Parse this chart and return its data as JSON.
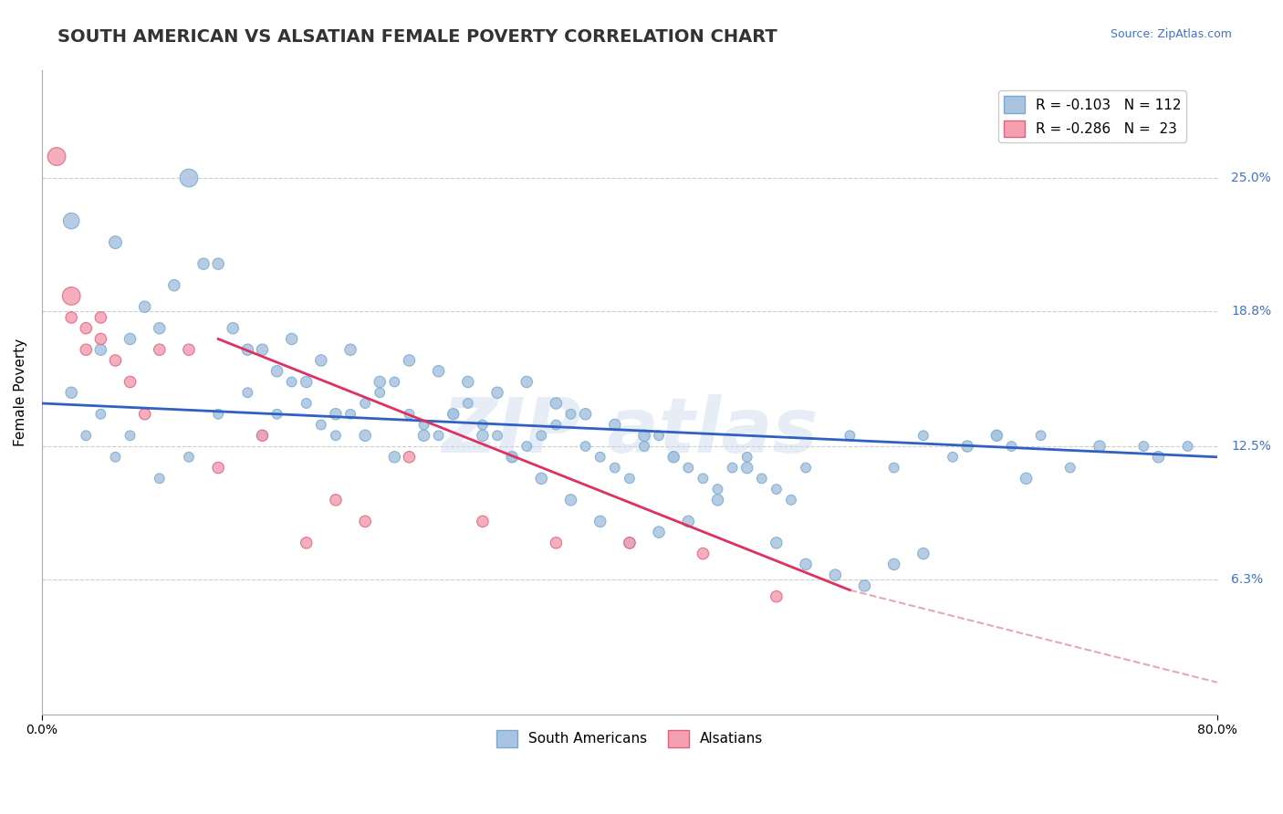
{
  "title": "SOUTH AMERICAN VS ALSATIAN FEMALE POVERTY CORRELATION CHART",
  "source": "Source: ZipAtlas.com",
  "ylabel": "Female Poverty",
  "xlim": [
    0.0,
    0.8
  ],
  "ylim": [
    0.0,
    0.3
  ],
  "yticks": [
    0.0,
    0.063,
    0.125,
    0.188,
    0.25
  ],
  "ytick_labels": [
    "",
    "6.3%",
    "12.5%",
    "18.8%",
    "25.0%"
  ],
  "xticks": [
    0.0,
    0.8
  ],
  "xtick_labels": [
    "0.0%",
    "80.0%"
  ],
  "south_americans": {
    "color": "#a8c4e0",
    "edge_color": "#7aaacf",
    "x": [
      0.02,
      0.03,
      0.04,
      0.05,
      0.06,
      0.08,
      0.1,
      0.12,
      0.14,
      0.15,
      0.16,
      0.17,
      0.18,
      0.19,
      0.2,
      0.21,
      0.22,
      0.23,
      0.24,
      0.25,
      0.26,
      0.27,
      0.28,
      0.29,
      0.3,
      0.31,
      0.32,
      0.33,
      0.34,
      0.35,
      0.36,
      0.37,
      0.38,
      0.39,
      0.4,
      0.41,
      0.42,
      0.43,
      0.44,
      0.45,
      0.46,
      0.47,
      0.48,
      0.49,
      0.5,
      0.51,
      0.52,
      0.55,
      0.58,
      0.6,
      0.62,
      0.65,
      0.66,
      0.68,
      0.7,
      0.75,
      0.78,
      0.05,
      0.07,
      0.09,
      0.11,
      0.13,
      0.15,
      0.17,
      0.19,
      0.21,
      0.23,
      0.25,
      0.27,
      0.29,
      0.31,
      0.33,
      0.35,
      0.37,
      0.39,
      0.41,
      0.43,
      0.02,
      0.04,
      0.06,
      0.08,
      0.1,
      0.12,
      0.14,
      0.16,
      0.18,
      0.2,
      0.22,
      0.24,
      0.26,
      0.28,
      0.3,
      0.32,
      0.34,
      0.36,
      0.38,
      0.4,
      0.42,
      0.44,
      0.46,
      0.48,
      0.5,
      0.52,
      0.54,
      0.56,
      0.58,
      0.6,
      0.63,
      0.65,
      0.67,
      0.72,
      0.76
    ],
    "y": [
      0.15,
      0.13,
      0.14,
      0.12,
      0.13,
      0.11,
      0.12,
      0.14,
      0.15,
      0.13,
      0.14,
      0.155,
      0.145,
      0.135,
      0.13,
      0.14,
      0.145,
      0.15,
      0.155,
      0.14,
      0.135,
      0.13,
      0.14,
      0.145,
      0.135,
      0.13,
      0.12,
      0.125,
      0.13,
      0.135,
      0.14,
      0.125,
      0.12,
      0.115,
      0.11,
      0.125,
      0.13,
      0.12,
      0.115,
      0.11,
      0.105,
      0.115,
      0.12,
      0.11,
      0.105,
      0.1,
      0.115,
      0.13,
      0.115,
      0.13,
      0.12,
      0.13,
      0.125,
      0.13,
      0.115,
      0.125,
      0.125,
      0.22,
      0.19,
      0.2,
      0.21,
      0.18,
      0.17,
      0.175,
      0.165,
      0.17,
      0.155,
      0.165,
      0.16,
      0.155,
      0.15,
      0.155,
      0.145,
      0.14,
      0.135,
      0.13,
      0.12,
      0.23,
      0.17,
      0.175,
      0.18,
      0.25,
      0.21,
      0.17,
      0.16,
      0.155,
      0.14,
      0.13,
      0.12,
      0.13,
      0.14,
      0.13,
      0.12,
      0.11,
      0.1,
      0.09,
      0.08,
      0.085,
      0.09,
      0.1,
      0.115,
      0.08,
      0.07,
      0.065,
      0.06,
      0.07,
      0.075,
      0.125,
      0.13,
      0.11,
      0.125,
      0.12
    ],
    "sizes": [
      80,
      60,
      60,
      60,
      60,
      60,
      60,
      60,
      60,
      60,
      60,
      60,
      60,
      60,
      60,
      60,
      60,
      60,
      60,
      60,
      60,
      60,
      60,
      60,
      60,
      60,
      60,
      60,
      60,
      60,
      60,
      60,
      60,
      60,
      60,
      60,
      60,
      60,
      60,
      60,
      60,
      60,
      60,
      60,
      60,
      60,
      60,
      60,
      60,
      60,
      60,
      60,
      60,
      60,
      60,
      60,
      60,
      100,
      80,
      80,
      80,
      80,
      80,
      80,
      80,
      80,
      80,
      80,
      80,
      80,
      80,
      80,
      80,
      80,
      80,
      80,
      80,
      160,
      80,
      80,
      80,
      200,
      80,
      80,
      80,
      80,
      80,
      80,
      80,
      80,
      80,
      80,
      80,
      80,
      80,
      80,
      80,
      80,
      80,
      80,
      80,
      80,
      80,
      80,
      80,
      80,
      80,
      80,
      80,
      80,
      80,
      80
    ]
  },
  "alsatians": {
    "color": "#f4a0b0",
    "edge_color": "#e06080",
    "x": [
      0.01,
      0.02,
      0.02,
      0.03,
      0.03,
      0.04,
      0.04,
      0.05,
      0.06,
      0.07,
      0.08,
      0.1,
      0.12,
      0.15,
      0.18,
      0.2,
      0.22,
      0.25,
      0.3,
      0.35,
      0.4,
      0.45,
      0.5
    ],
    "y": [
      0.26,
      0.195,
      0.185,
      0.18,
      0.17,
      0.185,
      0.175,
      0.165,
      0.155,
      0.14,
      0.17,
      0.17,
      0.115,
      0.13,
      0.08,
      0.1,
      0.09,
      0.12,
      0.09,
      0.08,
      0.08,
      0.075,
      0.055
    ],
    "sizes": [
      200,
      200,
      80,
      80,
      80,
      80,
      80,
      80,
      80,
      80,
      80,
      80,
      80,
      80,
      80,
      80,
      80,
      80,
      80,
      80,
      80,
      80,
      80
    ]
  },
  "trendline_blue": {
    "x_start": 0.0,
    "y_start": 0.145,
    "x_end": 0.8,
    "y_end": 0.12
  },
  "trendline_pink_solid": {
    "x_start": 0.12,
    "y_start": 0.175,
    "x_end": 0.55,
    "y_end": 0.058
  },
  "trendline_pink_dashed": {
    "x_start": 0.55,
    "y_start": 0.058,
    "x_end": 0.8,
    "y_end": 0.015
  },
  "background_color": "#ffffff",
  "grid_color": "#cccccc",
  "title_color": "#333333",
  "title_fontsize": 14,
  "ylabel_fontsize": 11,
  "source_fontsize": 9,
  "source_color": "#4472c4",
  "legend_R_blue": "R = -0.103",
  "legend_N_blue": "N = 112",
  "legend_R_pink": "R = -0.286",
  "legend_N_pink": "N =  23",
  "legend_label_blue": "South Americans",
  "legend_label_pink": "Alsatians"
}
